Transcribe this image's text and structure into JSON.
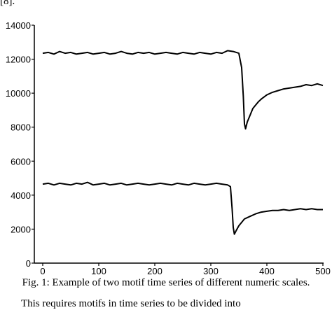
{
  "page": {
    "top_fragment": "[8].",
    "caption": "Fig. 1: Example of two motif time series of different numeric scales.",
    "bottom_fragment": "This requires motifs in time series to be divided into"
  },
  "chart_data": {
    "type": "line",
    "title": "",
    "xlabel": "",
    "ylabel": "",
    "xlim": [
      0,
      500
    ],
    "ylim": [
      0,
      14000
    ],
    "x_ticks": [
      0,
      100,
      200,
      300,
      400,
      500
    ],
    "y_ticks": [
      0,
      2000,
      4000,
      6000,
      8000,
      10000,
      12000,
      14000
    ],
    "x_tick_labels": [
      "0",
      "100",
      "200",
      "300",
      "400",
      "500"
    ],
    "y_tick_labels": [
      "0",
      "2000",
      "4000",
      "6000",
      "8000",
      "10000",
      "12000",
      "14000"
    ],
    "grid": false,
    "legend": "none",
    "line_color": "#000000",
    "series": [
      {
        "x": [
          0,
          10,
          20,
          30,
          40,
          50,
          60,
          70,
          80,
          90,
          100,
          110,
          120,
          130,
          140,
          150,
          160,
          170,
          180,
          190,
          200,
          210,
          220,
          230,
          240,
          250,
          260,
          270,
          280,
          290,
          300,
          310,
          320,
          330,
          340,
          350,
          355,
          358,
          360,
          362,
          365,
          370,
          375,
          380,
          385,
          390,
          400,
          410,
          420,
          430,
          440,
          450,
          460,
          470,
          480,
          490,
          500
        ],
        "y": [
          12350,
          12400,
          12300,
          12450,
          12350,
          12400,
          12300,
          12350,
          12400,
          12300,
          12350,
          12400,
          12300,
          12350,
          12450,
          12350,
          12300,
          12400,
          12350,
          12400,
          12300,
          12350,
          12400,
          12350,
          12300,
          12400,
          12350,
          12300,
          12400,
          12350,
          12300,
          12400,
          12350,
          12500,
          12450,
          12350,
          11500,
          9800,
          8200,
          7900,
          8300,
          8700,
          9100,
          9300,
          9500,
          9650,
          9900,
          10050,
          10150,
          10250,
          10300,
          10350,
          10400,
          10500,
          10450,
          10550,
          10450
        ]
      },
      {
        "x": [
          0,
          10,
          20,
          30,
          40,
          50,
          60,
          70,
          80,
          90,
          100,
          110,
          120,
          130,
          140,
          150,
          160,
          170,
          180,
          190,
          200,
          210,
          220,
          230,
          240,
          250,
          260,
          270,
          280,
          290,
          300,
          310,
          320,
          330,
          335,
          338,
          340,
          342,
          345,
          350,
          355,
          360,
          370,
          380,
          390,
          400,
          410,
          420,
          430,
          440,
          450,
          460,
          470,
          480,
          490,
          500
        ],
        "y": [
          4650,
          4700,
          4600,
          4700,
          4650,
          4600,
          4700,
          4650,
          4750,
          4600,
          4650,
          4700,
          4600,
          4650,
          4700,
          4600,
          4650,
          4700,
          4650,
          4600,
          4650,
          4700,
          4650,
          4600,
          4700,
          4650,
          4600,
          4700,
          4650,
          4600,
          4650,
          4700,
          4650,
          4600,
          4500,
          3200,
          2100,
          1700,
          1900,
          2200,
          2400,
          2600,
          2750,
          2900,
          3000,
          3050,
          3100,
          3100,
          3150,
          3100,
          3150,
          3200,
          3150,
          3200,
          3150,
          3150
        ]
      }
    ]
  }
}
